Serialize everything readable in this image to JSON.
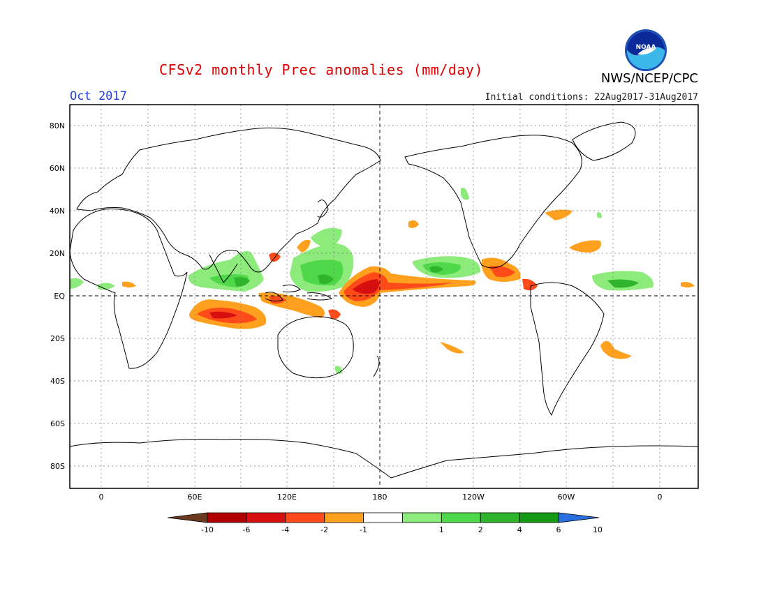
{
  "header": {
    "title": "CFSv2 monthly Prec anomalies (mm/day)",
    "month": "Oct 2017",
    "initial_conditions": "Initial conditions: 22Aug2017-31Aug2017",
    "agency": "NWS/NCEP/CPC",
    "logo_text": "NOAA"
  },
  "map": {
    "lat_labels": [
      "80N",
      "60N",
      "40N",
      "20N",
      "EQ",
      "20S",
      "40S",
      "60S",
      "80S"
    ],
    "lon_labels": [
      "0",
      "60E",
      "120E",
      "180",
      "120W",
      "60W",
      "0"
    ]
  },
  "colorbar": {
    "tick_labels": [
      "-10",
      "-6",
      "-4",
      "-2",
      "-1",
      "1",
      "2",
      "4",
      "6",
      "10"
    ],
    "colors": [
      "#6b3a1e",
      "#b00000",
      "#d61010",
      "#ff4a1a",
      "#ffa01e",
      "#ffffff",
      "#8ceb7a",
      "#4fd84a",
      "#2fb52b",
      "#159a15",
      "#2a6fe0"
    ]
  },
  "colors": {
    "title": "#e00000",
    "month": "#2340d8",
    "orange": "#ffa01e",
    "red_orange": "#ff4a1a",
    "red": "#d61010",
    "light_green": "#8ceb7a",
    "green": "#4fd84a",
    "dark_green": "#2fb52b"
  }
}
